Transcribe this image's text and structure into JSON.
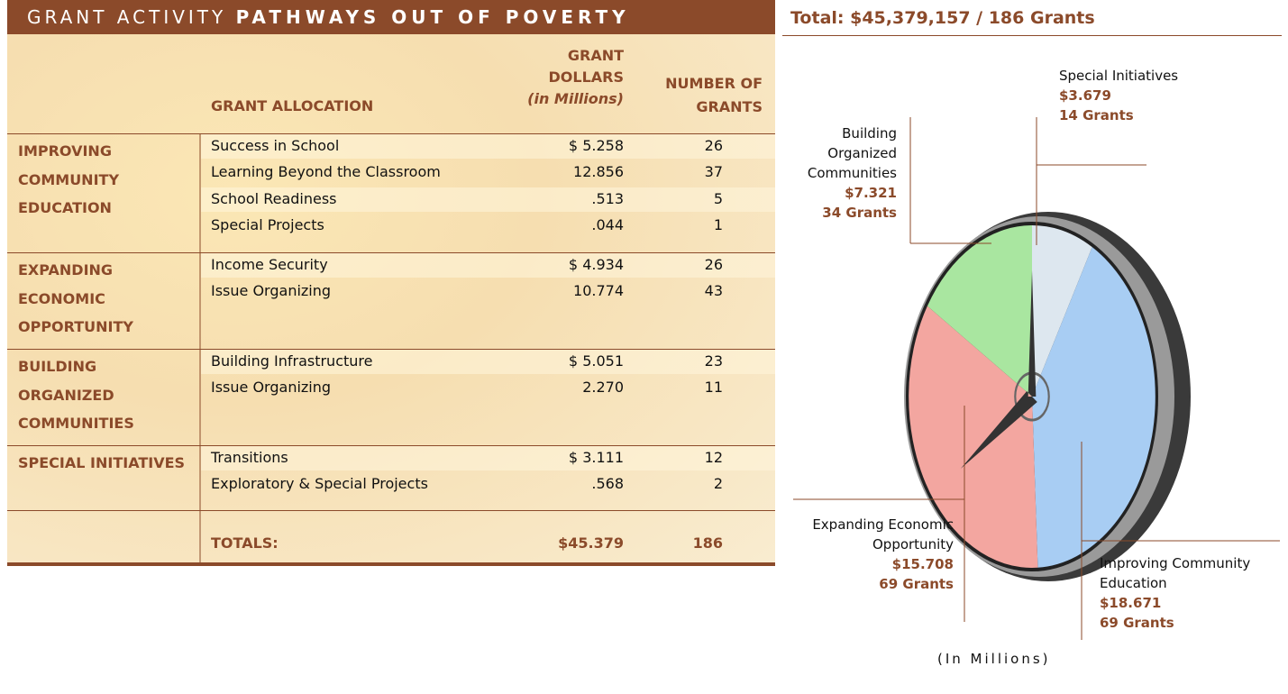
{
  "header": {
    "title_light": "GRANT ACTIVITY",
    "title_bold": "PATHWAYS OUT OF POVERTY",
    "total": "Total: $45,379,157 / 186 Grants"
  },
  "table": {
    "columns": {
      "allocation": "GRANT ALLOCATION",
      "dollars": "GRANT DOLLARS",
      "dollars_note": "(in Millions)",
      "grants": "NUMBER OF GRANTS"
    },
    "groups": [
      {
        "name": "IMPROVING COMMUNITY EDUCATION",
        "rows": [
          [
            "Success in School",
            "$ 5.258",
            "26"
          ],
          [
            "Learning Beyond the Classroom",
            "12.856",
            "37"
          ],
          [
            "School Readiness",
            ".513",
            "5"
          ],
          [
            "Special Projects",
            ".044",
            "1"
          ]
        ]
      },
      {
        "name": "EXPANDING ECONOMIC OPPORTUNITY",
        "rows": [
          [
            "Income Security",
            "$ 4.934",
            "26"
          ],
          [
            "Issue Organizing",
            "10.774",
            "43"
          ]
        ]
      },
      {
        "name": "BUILDING ORGANIZED COMMUNITIES",
        "rows": [
          [
            "Building Infrastructure",
            "$ 5.051",
            "23"
          ],
          [
            "Issue Organizing",
            "2.270",
            "11"
          ]
        ]
      },
      {
        "name": "SPECIAL INITIATIVES",
        "rows": [
          [
            "Transitions",
            "$ 3.111",
            "12"
          ],
          [
            "Exploratory & Special Projects",
            ".568",
            "2"
          ]
        ]
      }
    ],
    "totals": [
      "TOTALS:",
      "$45.379",
      "186"
    ]
  },
  "chart_data": {
    "type": "pie",
    "categories": [
      "Special Initiatives",
      "Improving Community Education",
      "Expanding Economic Opportunity",
      "Building Organized Communities"
    ],
    "values": [
      3.679,
      18.671,
      15.708,
      7.321
    ],
    "value_labels": [
      "$3.679",
      "$18.671",
      "$15.708",
      "$7.321"
    ],
    "grant_labels": [
      "14 Grants",
      "69 Grants",
      "69 Grants",
      "34 Grants"
    ],
    "colors": [
      "#dde7ef",
      "#a8cdf3",
      "#f3a6a0",
      "#a9e6a0"
    ],
    "note": "(In Millions)"
  }
}
